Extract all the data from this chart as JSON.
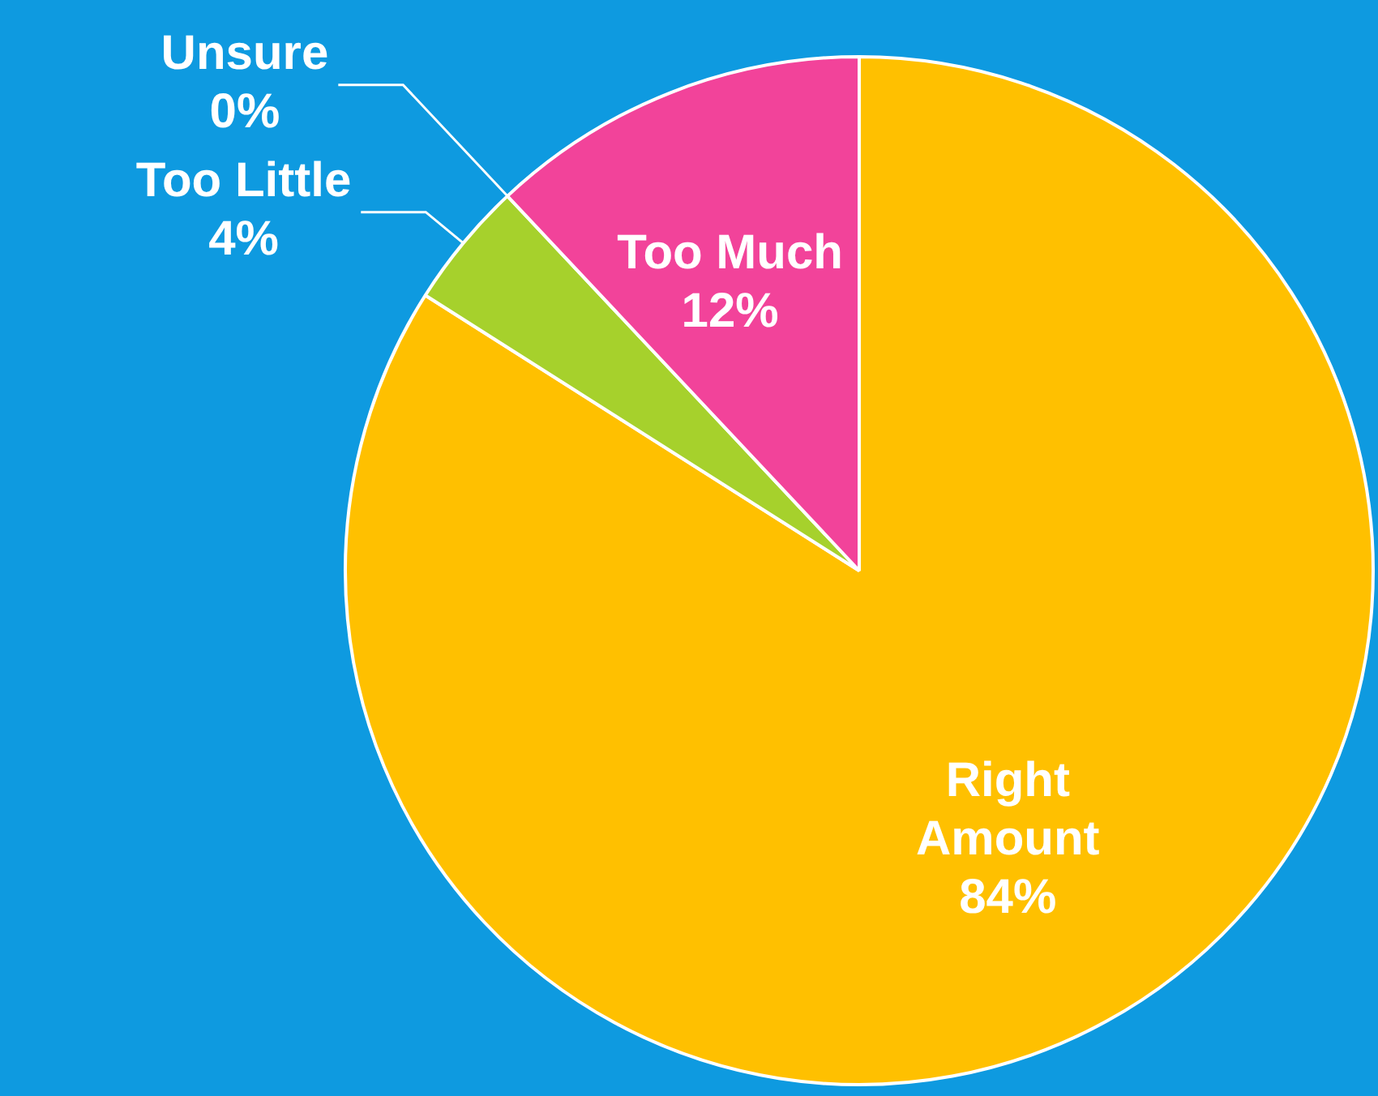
{
  "chart_data": {
    "type": "pie",
    "categories": [
      "Right Amount",
      "Too Little",
      "Unsure",
      "Too Much"
    ],
    "values": [
      84,
      4,
      0,
      12
    ],
    "colors": [
      "#ffc000",
      "#a6d12c",
      "#22c25a",
      "#f2439a"
    ],
    "value_labels": [
      "84%",
      "4%",
      "0%",
      "12%"
    ]
  }
}
